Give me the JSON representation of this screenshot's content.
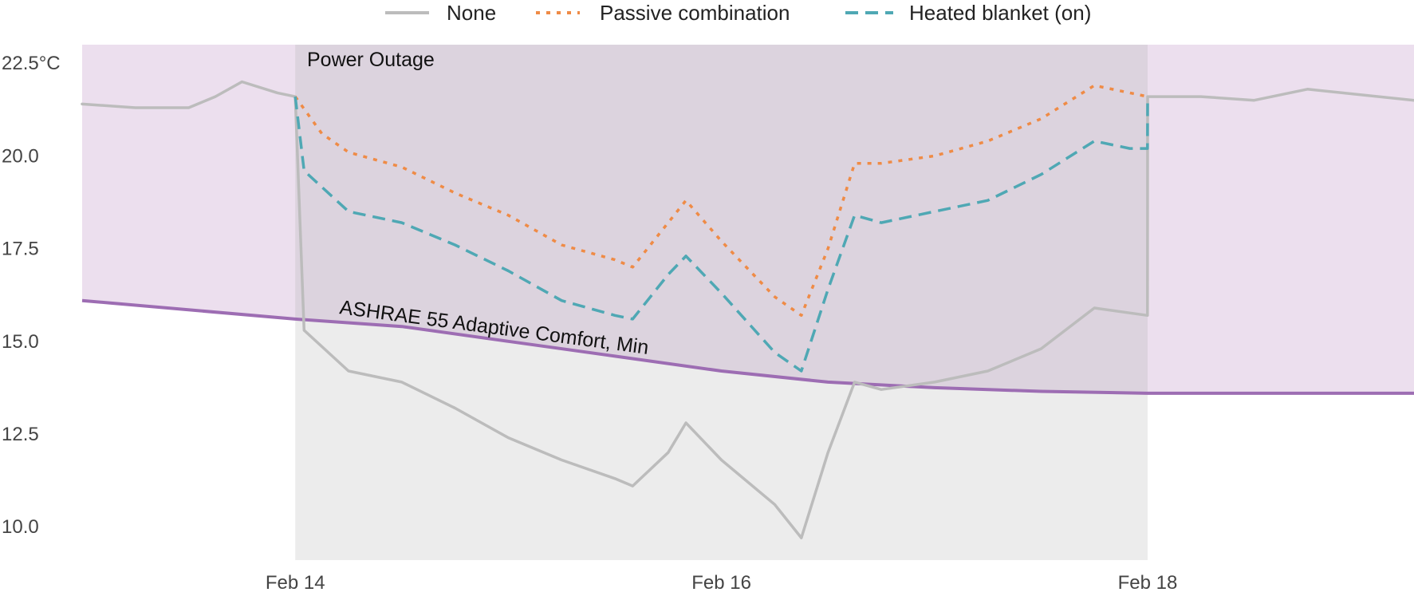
{
  "chart_data": {
    "type": "line",
    "ylabel": "",
    "ylim": [
      9.1,
      23.0
    ],
    "y_ticks": [
      "22.5°C",
      "20.0",
      "17.5",
      "15.0",
      "12.5",
      "10.0"
    ],
    "y_tick_values": [
      22.5,
      20.0,
      17.5,
      15.0,
      12.5,
      10.0
    ],
    "x_range": [
      "Feb 13 00:00",
      "Feb 19 06:00"
    ],
    "x_ticks": [
      "Feb 14",
      "Feb 16",
      "Feb 18"
    ],
    "x_tick_values": [
      "Feb 14 00:00",
      "Feb 16 00:00",
      "Feb 18 00:00"
    ],
    "grid": false,
    "legend": {
      "position": "top-center",
      "entries": [
        "None",
        "Passive combination",
        "Heated blanket (on)"
      ]
    },
    "outage": {
      "label": "Power Outage",
      "start": "Feb 14 00:00",
      "end": "Feb 18 00:00"
    },
    "comfort_min": {
      "label": "ASHRAE 55 Adaptive Comfort, Min",
      "x": [
        "Feb 13 00:00",
        "Feb 14 00:00",
        "Feb 14 12:00",
        "Feb 15 00:00",
        "Feb 15 12:00",
        "Feb 16 00:00",
        "Feb 16 12:00",
        "Feb 17 00:00",
        "Feb 17 12:00",
        "Feb 18 00:00",
        "Feb 18 12:00",
        "Feb 19 06:00"
      ],
      "y": [
        16.1,
        15.6,
        15.4,
        15.0,
        14.6,
        14.2,
        13.9,
        13.75,
        13.65,
        13.6,
        13.6,
        13.6
      ]
    },
    "series": [
      {
        "name": "None",
        "x": [
          "Feb 13 00:00",
          "Feb 13 06:00",
          "Feb 13 12:00",
          "Feb 13 15:00",
          "Feb 13 18:00",
          "Feb 13 22:00",
          "Feb 14 00:00",
          "Feb 14 01:00",
          "Feb 14 06:00",
          "Feb 14 12:00",
          "Feb 14 18:00",
          "Feb 15 00:00",
          "Feb 15 06:00",
          "Feb 15 12:00",
          "Feb 15 14:00",
          "Feb 15 18:00",
          "Feb 15 20:00",
          "Feb 16 00:00",
          "Feb 16 06:00",
          "Feb 16 09:00",
          "Feb 16 12:00",
          "Feb 16 15:00",
          "Feb 16 18:00",
          "Feb 17 00:00",
          "Feb 17 06:00",
          "Feb 17 12:00",
          "Feb 17 18:00",
          "Feb 17 23:59",
          "Feb 18 00:00",
          "Feb 18 06:00",
          "Feb 18 12:00",
          "Feb 18 18:00",
          "Feb 19 06:00"
        ],
        "y": [
          21.4,
          21.3,
          21.3,
          21.6,
          22.0,
          21.7,
          21.6,
          15.3,
          14.2,
          13.9,
          13.2,
          12.4,
          11.8,
          11.3,
          11.1,
          12.0,
          12.8,
          11.8,
          10.6,
          9.7,
          12.0,
          13.9,
          13.7,
          13.9,
          14.2,
          14.8,
          15.9,
          15.7,
          21.6,
          21.6,
          21.5,
          21.8,
          21.5
        ]
      },
      {
        "name": "Passive combination",
        "x": [
          "Feb 14 00:00",
          "Feb 14 03:00",
          "Feb 14 06:00",
          "Feb 14 12:00",
          "Feb 14 18:00",
          "Feb 15 00:00",
          "Feb 15 06:00",
          "Feb 15 12:00",
          "Feb 15 14:00",
          "Feb 15 18:00",
          "Feb 15 20:00",
          "Feb 16 00:00",
          "Feb 16 06:00",
          "Feb 16 09:00",
          "Feb 16 12:00",
          "Feb 16 15:00",
          "Feb 16 18:00",
          "Feb 17 00:00",
          "Feb 17 06:00",
          "Feb 17 12:00",
          "Feb 17 18:00",
          "Feb 17 22:00",
          "Feb 18 00:00"
        ],
        "y": [
          21.6,
          20.6,
          20.1,
          19.7,
          19.0,
          18.4,
          17.6,
          17.2,
          17.0,
          18.2,
          18.8,
          17.7,
          16.2,
          15.7,
          17.5,
          19.8,
          19.8,
          20.0,
          20.4,
          21.0,
          21.9,
          21.7,
          21.6
        ]
      },
      {
        "name": "Heated blanket (on)",
        "x": [
          "Feb 14 00:00",
          "Feb 14 01:00",
          "Feb 14 06:00",
          "Feb 14 12:00",
          "Feb 14 18:00",
          "Feb 15 00:00",
          "Feb 15 06:00",
          "Feb 15 12:00",
          "Feb 15 14:00",
          "Feb 15 18:00",
          "Feb 15 20:00",
          "Feb 16 00:00",
          "Feb 16 06:00",
          "Feb 16 09:00",
          "Feb 16 12:00",
          "Feb 16 15:00",
          "Feb 16 18:00",
          "Feb 17 00:00",
          "Feb 17 06:00",
          "Feb 17 12:00",
          "Feb 17 18:00",
          "Feb 17 22:00",
          "Feb 17 23:59",
          "Feb 18 00:00"
        ],
        "y": [
          21.6,
          19.6,
          18.5,
          18.2,
          17.6,
          16.9,
          16.1,
          15.7,
          15.6,
          16.8,
          17.3,
          16.3,
          14.7,
          14.2,
          16.4,
          18.4,
          18.2,
          18.5,
          18.8,
          19.5,
          20.4,
          20.2,
          20.2,
          21.6
        ]
      }
    ]
  },
  "colors": {
    "none": "#bcbcbc",
    "passive": "#ef8b46",
    "blanket": "#4fa8b4",
    "comfort": "#9d6db3",
    "comfort_fill": "#ecdfee",
    "outage_below": "#ececec",
    "outage_above": "#dcd3de",
    "tick": "#444444"
  }
}
